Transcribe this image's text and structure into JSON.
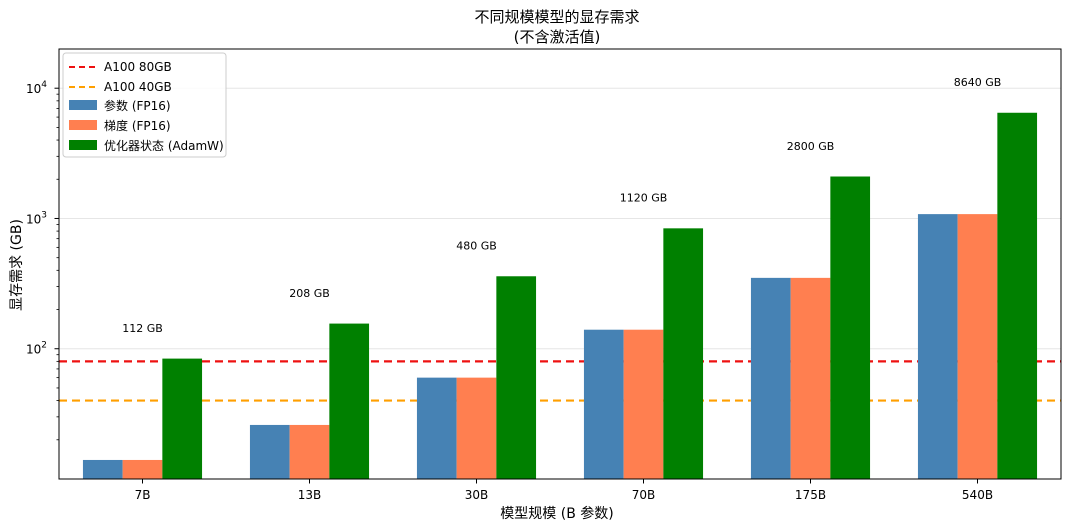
{
  "chart_data": {
    "type": "bar",
    "title_line1": "不同规模模型的显存需求",
    "title_line2": "(不含激活值)",
    "xlabel": "模型规模 (B 参数)",
    "ylabel": "显存需求 (GB)",
    "yscale": "log",
    "ylim": [
      10,
      20000
    ],
    "yticks": [
      {
        "value": 100,
        "base": "10",
        "exp": "2"
      },
      {
        "value": 1000,
        "base": "10",
        "exp": "3"
      },
      {
        "value": 10000,
        "base": "10",
        "exp": "4"
      }
    ],
    "grid": "horizontal",
    "legend_position": "top-left",
    "categories": [
      "7B",
      "13B",
      "30B",
      "70B",
      "175B",
      "540B"
    ],
    "series": [
      {
        "name": "参数 (FP16)",
        "color": "#4682b4",
        "values": [
          14,
          26,
          60,
          140,
          350,
          1080
        ]
      },
      {
        "name": "梯度 (FP16)",
        "color": "#ff7f50",
        "values": [
          14,
          26,
          60,
          140,
          350,
          1080
        ]
      },
      {
        "name": "优化器状态 (AdamW)",
        "color": "#008000",
        "values": [
          84,
          156,
          360,
          840,
          2100,
          6480
        ]
      }
    ],
    "reference_lines": [
      {
        "name": "A100 80GB",
        "value": 80,
        "color": "#ee1111"
      },
      {
        "name": "A100 40GB",
        "value": 40,
        "color": "#ff9f00"
      }
    ],
    "totals": [
      "112 GB",
      "208 GB",
      "480 GB",
      "1120 GB",
      "2800 GB",
      "8640 GB"
    ]
  }
}
